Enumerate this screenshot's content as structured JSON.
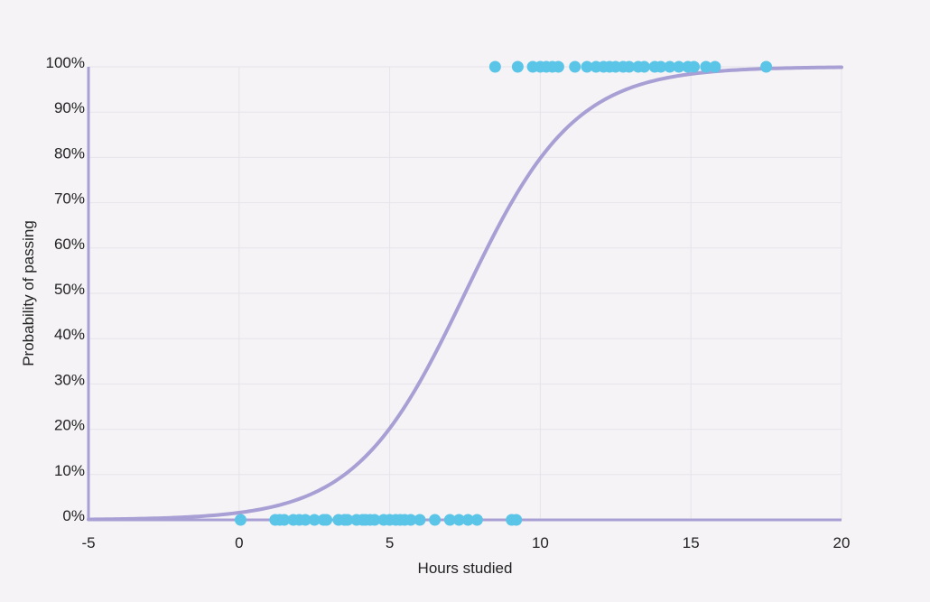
{
  "chart_data": {
    "type": "scatter",
    "title": "",
    "xlabel": "Hours studied",
    "ylabel": "Probability of passing",
    "xlim": [
      -5,
      20
    ],
    "ylim": [
      0,
      1
    ],
    "x_ticks": [
      {
        "value": -5,
        "label": "-5"
      },
      {
        "value": 0,
        "label": "0"
      },
      {
        "value": 5,
        "label": "5"
      },
      {
        "value": 10,
        "label": "10"
      },
      {
        "value": 15,
        "label": "15"
      },
      {
        "value": 20,
        "label": "20"
      }
    ],
    "y_ticks": [
      {
        "value": 0,
        "label": "0%"
      },
      {
        "value": 0.1,
        "label": "10%"
      },
      {
        "value": 0.2,
        "label": "20%"
      },
      {
        "value": 0.3,
        "label": "30%"
      },
      {
        "value": 0.4,
        "label": "40%"
      },
      {
        "value": 0.5,
        "label": "50%"
      },
      {
        "value": 0.6,
        "label": "60%"
      },
      {
        "value": 0.7,
        "label": "70%"
      },
      {
        "value": 0.8,
        "label": "80%"
      },
      {
        "value": 0.9,
        "label": "90%"
      },
      {
        "value": 1,
        "label": "100%"
      }
    ],
    "grid": true,
    "colors": {
      "points": "#5bc5e8",
      "curve": "#a89fd4",
      "grid": "#e6e3ea"
    },
    "series": [
      {
        "type": "scatter",
        "points": [
          {
            "x": 0.05,
            "y": 0
          },
          {
            "x": 1.2,
            "y": 0
          },
          {
            "x": 1.35,
            "y": 0
          },
          {
            "x": 1.5,
            "y": 0
          },
          {
            "x": 1.8,
            "y": 0
          },
          {
            "x": 2.0,
            "y": 0
          },
          {
            "x": 2.2,
            "y": 0
          },
          {
            "x": 2.5,
            "y": 0
          },
          {
            "x": 2.8,
            "y": 0
          },
          {
            "x": 2.9,
            "y": 0
          },
          {
            "x": 3.3,
            "y": 0
          },
          {
            "x": 3.5,
            "y": 0
          },
          {
            "x": 3.6,
            "y": 0
          },
          {
            "x": 3.9,
            "y": 0
          },
          {
            "x": 4.1,
            "y": 0
          },
          {
            "x": 4.2,
            "y": 0
          },
          {
            "x": 4.35,
            "y": 0
          },
          {
            "x": 4.5,
            "y": 0
          },
          {
            "x": 4.8,
            "y": 0
          },
          {
            "x": 5.0,
            "y": 0
          },
          {
            "x": 5.2,
            "y": 0
          },
          {
            "x": 5.35,
            "y": 0
          },
          {
            "x": 5.5,
            "y": 0
          },
          {
            "x": 5.7,
            "y": 0
          },
          {
            "x": 6.0,
            "y": 0
          },
          {
            "x": 6.5,
            "y": 0
          },
          {
            "x": 7.0,
            "y": 0
          },
          {
            "x": 7.3,
            "y": 0
          },
          {
            "x": 7.6,
            "y": 0
          },
          {
            "x": 7.9,
            "y": 0
          },
          {
            "x": 9.05,
            "y": 0
          },
          {
            "x": 9.2,
            "y": 0
          },
          {
            "x": 8.5,
            "y": 1
          },
          {
            "x": 9.25,
            "y": 1
          },
          {
            "x": 9.75,
            "y": 1
          },
          {
            "x": 10.0,
            "y": 1
          },
          {
            "x": 10.2,
            "y": 1
          },
          {
            "x": 10.4,
            "y": 1
          },
          {
            "x": 10.6,
            "y": 1
          },
          {
            "x": 11.15,
            "y": 1
          },
          {
            "x": 11.55,
            "y": 1
          },
          {
            "x": 11.85,
            "y": 1
          },
          {
            "x": 12.1,
            "y": 1
          },
          {
            "x": 12.3,
            "y": 1
          },
          {
            "x": 12.5,
            "y": 1
          },
          {
            "x": 12.75,
            "y": 1
          },
          {
            "x": 12.95,
            "y": 1
          },
          {
            "x": 13.25,
            "y": 1
          },
          {
            "x": 13.45,
            "y": 1
          },
          {
            "x": 13.8,
            "y": 1
          },
          {
            "x": 14.0,
            "y": 1
          },
          {
            "x": 14.3,
            "y": 1
          },
          {
            "x": 14.6,
            "y": 1
          },
          {
            "x": 14.9,
            "y": 1
          },
          {
            "x": 15.1,
            "y": 1
          },
          {
            "x": 15.5,
            "y": 1
          },
          {
            "x": 15.8,
            "y": 1
          },
          {
            "x": 17.5,
            "y": 1
          }
        ]
      },
      {
        "type": "line",
        "function": "logistic",
        "midpoint": 7.5,
        "steepness": 0.55
      }
    ]
  }
}
